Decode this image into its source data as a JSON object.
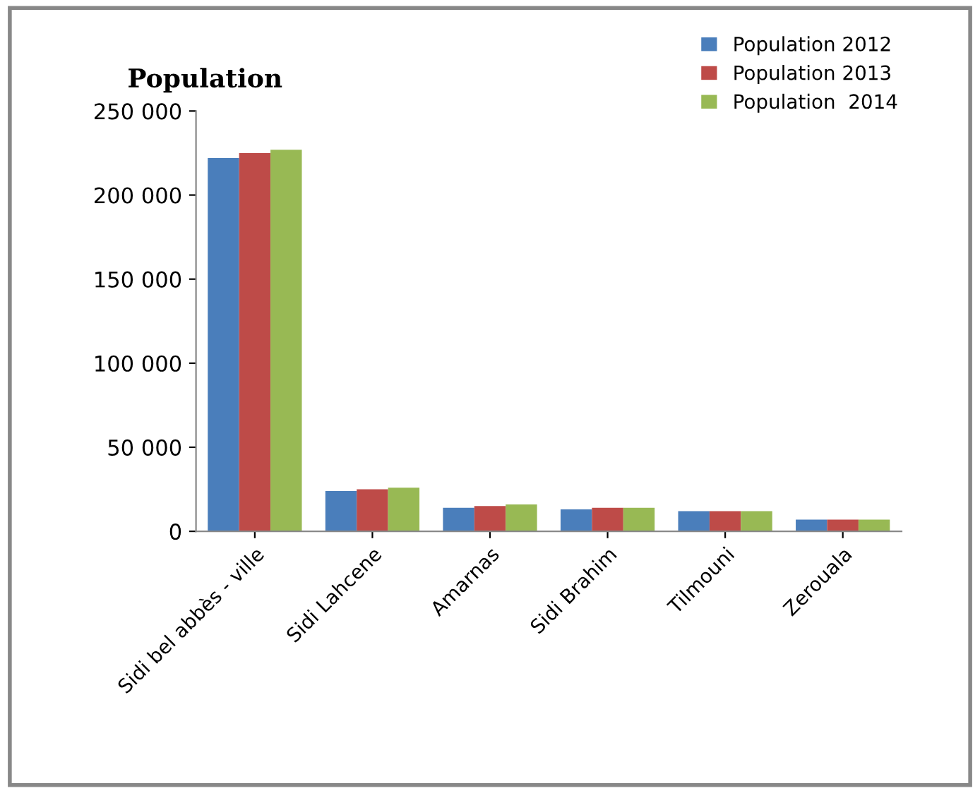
{
  "chart_data": {
    "type": "bar",
    "title": "Population",
    "categories": [
      "Sidi bel abbès - ville",
      "Sidi Lahcene",
      "Amarnas",
      "Sidi Brahim",
      "Tilmouni",
      "Zerouala"
    ],
    "series": [
      {
        "name": "Population 2012",
        "color": "#4a7ebb",
        "values": [
          222000,
          24000,
          14000,
          13000,
          12000,
          7000
        ]
      },
      {
        "name": "Population 2013",
        "color": "#be4b48",
        "values": [
          225000,
          25000,
          15000,
          14000,
          12000,
          7000
        ]
      },
      {
        "name": "Population  2014",
        "color": "#98b954",
        "values": [
          227000,
          26000,
          16000,
          14000,
          12000,
          7000
        ]
      }
    ],
    "ylim": [
      0,
      250000
    ],
    "yticks": [
      {
        "value": 0,
        "label": "0"
      },
      {
        "value": 50000,
        "label": "50 000"
      },
      {
        "value": 100000,
        "label": "100 000"
      },
      {
        "value": 150000,
        "label": "150 000"
      },
      {
        "value": 200000,
        "label": "200 000"
      },
      {
        "value": 250000,
        "label": "250 000"
      }
    ],
    "grid": false,
    "legend": "top right"
  }
}
